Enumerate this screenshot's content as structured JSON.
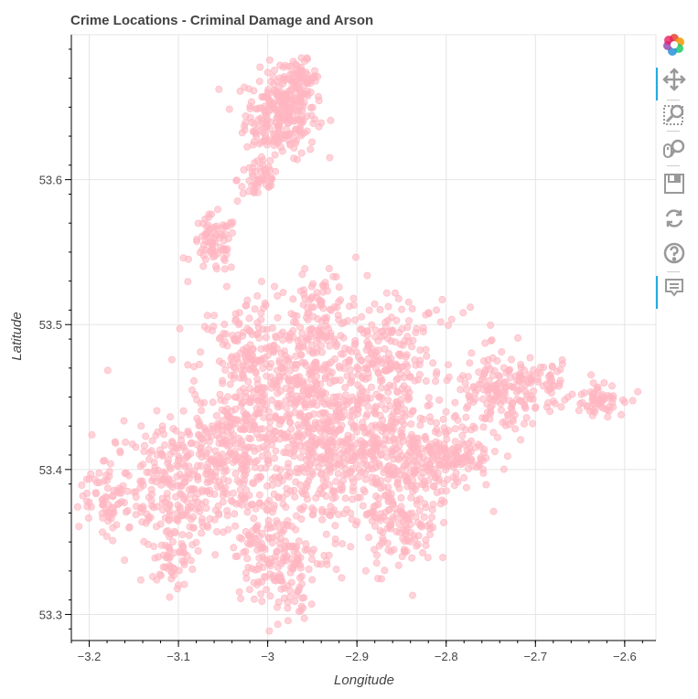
{
  "chart_data": {
    "type": "scatter",
    "title": "Crime Locations - Criminal Damage and Arson",
    "xlabel": "Longitude",
    "ylabel": "Latitude",
    "xlim": [
      -3.22,
      -2.565
    ],
    "ylim": [
      53.282,
      53.7
    ],
    "x_ticks": [
      -3.2,
      -3.1,
      -3.0,
      -2.9,
      -2.8,
      -2.7,
      -2.6
    ],
    "x_tick_labels": [
      "−3.2",
      "−3.1",
      "−3",
      "−2.9",
      "−2.8",
      "−2.7",
      "−2.6"
    ],
    "y_ticks": [
      53.3,
      53.4,
      53.5,
      53.6
    ],
    "y_tick_labels": [
      "53.3",
      "53.4",
      "53.5",
      "53.6"
    ],
    "grid": true,
    "point_color": "#ffb6c1",
    "point_alpha": 0.6,
    "clusters": [
      {
        "center": [
          -2.985,
          53.645
        ],
        "spread": [
          0.02,
          0.015
        ],
        "count": 260
      },
      {
        "center": [
          -2.965,
          53.67
        ],
        "spread": [
          0.01,
          0.006
        ],
        "count": 60
      },
      {
        "center": [
          -3.01,
          53.6
        ],
        "spread": [
          0.012,
          0.008
        ],
        "count": 50
      },
      {
        "center": [
          -3.06,
          53.555
        ],
        "spread": [
          0.013,
          0.01
        ],
        "count": 80
      },
      {
        "center": [
          -2.94,
          53.51
        ],
        "spread": [
          0.015,
          0.012
        ],
        "count": 70
      },
      {
        "center": [
          -3.02,
          53.47
        ],
        "spread": [
          0.03,
          0.025
        ],
        "count": 220
      },
      {
        "center": [
          -2.87,
          53.475
        ],
        "spread": [
          0.02,
          0.02
        ],
        "count": 120
      },
      {
        "center": [
          -2.94,
          53.43
        ],
        "spread": [
          0.045,
          0.04
        ],
        "count": 700
      },
      {
        "center": [
          -2.86,
          53.41
        ],
        "spread": [
          0.04,
          0.018
        ],
        "count": 260
      },
      {
        "center": [
          -2.79,
          53.41
        ],
        "spread": [
          0.02,
          0.012
        ],
        "count": 100
      },
      {
        "center": [
          -3.1,
          53.39
        ],
        "spread": [
          0.04,
          0.022
        ],
        "count": 320
      },
      {
        "center": [
          -3.04,
          53.42
        ],
        "spread": [
          0.02,
          0.015
        ],
        "count": 120
      },
      {
        "center": [
          -3.18,
          53.38
        ],
        "spread": [
          0.015,
          0.012
        ],
        "count": 60
      },
      {
        "center": [
          -3.0,
          53.35
        ],
        "spread": [
          0.02,
          0.02
        ],
        "count": 120
      },
      {
        "center": [
          -2.975,
          53.325
        ],
        "spread": [
          0.01,
          0.015
        ],
        "count": 60
      },
      {
        "center": [
          -3.11,
          53.34
        ],
        "spread": [
          0.01,
          0.015
        ],
        "count": 50
      },
      {
        "center": [
          -2.85,
          53.36
        ],
        "spread": [
          0.02,
          0.015
        ],
        "count": 120
      },
      {
        "center": [
          -2.74,
          53.45
        ],
        "spread": [
          0.025,
          0.015
        ],
        "count": 160
      },
      {
        "center": [
          -2.69,
          53.46
        ],
        "spread": [
          0.015,
          0.008
        ],
        "count": 50
      },
      {
        "center": [
          -2.63,
          53.45
        ],
        "spread": [
          0.015,
          0.006
        ],
        "count": 60
      },
      {
        "center": [
          -2.82,
          53.47
        ],
        "spread": [
          0.02,
          0.02
        ],
        "count": 40
      }
    ]
  },
  "toolbar": {
    "tools": [
      {
        "name": "bokeh-logo-icon",
        "active": false
      },
      {
        "name": "pan-tool-icon",
        "active": true
      },
      {
        "name": "box-zoom-tool-icon",
        "active": false
      },
      {
        "name": "wheel-zoom-tool-icon",
        "active": false
      },
      {
        "name": "save-tool-icon",
        "active": false
      },
      {
        "name": "reset-tool-icon",
        "active": false
      },
      {
        "name": "help-tool-icon",
        "active": false
      },
      {
        "name": "hover-tool-icon",
        "active": true
      }
    ]
  }
}
